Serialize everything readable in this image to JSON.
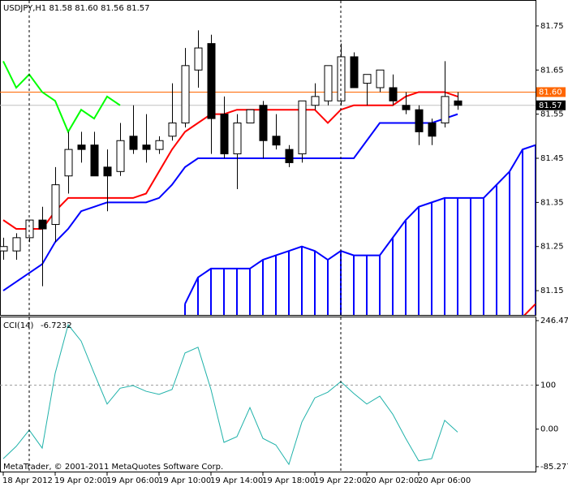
{
  "chart_data": [
    {
      "type": "candlestick",
      "legend_text": "USDJPY,H1  81.58 81.60 81.56 81.57",
      "categories": [
        "18 Apr 2012",
        null,
        null,
        null,
        "19 Apr 02:00",
        null,
        null,
        null,
        "19 Apr 06:00",
        null,
        null,
        null,
        "19 Apr 10:00",
        null,
        null,
        null,
        "19 Apr 14:00",
        null,
        null,
        null,
        "19 Apr 18:00",
        null,
        null,
        null,
        "19 Apr 22:00",
        null,
        null,
        null,
        "20 Apr 02:00",
        null,
        null,
        null,
        "20 Apr 06:00",
        null,
        null,
        null,
        null,
        null,
        null,
        null,
        null,
        null
      ],
      "open": [
        81.24,
        81.24,
        81.27,
        81.31,
        81.3,
        81.41,
        81.48,
        81.48,
        81.43,
        81.42,
        81.5,
        81.48,
        81.47,
        81.5,
        81.53,
        81.65,
        81.71,
        81.55,
        81.46,
        81.53,
        81.57,
        81.5,
        81.47,
        81.46,
        81.57,
        81.58,
        81.58,
        81.68,
        81.62,
        81.61,
        81.61,
        81.57,
        81.56,
        81.53,
        81.53,
        81.58,
        null,
        null,
        null,
        null,
        null,
        null
      ],
      "high": [
        81.27,
        81.28,
        81.31,
        81.34,
        81.43,
        81.51,
        81.51,
        81.51,
        81.47,
        81.53,
        81.57,
        81.55,
        81.5,
        81.62,
        81.7,
        81.74,
        81.73,
        81.59,
        81.55,
        81.56,
        81.58,
        81.55,
        81.48,
        81.58,
        81.62,
        81.66,
        81.71,
        81.69,
        81.64,
        81.65,
        81.64,
        81.6,
        81.57,
        81.54,
        81.67,
        81.6,
        null,
        null,
        null,
        null,
        null,
        null
      ],
      "low": [
        81.22,
        81.22,
        81.26,
        81.16,
        81.26,
        81.37,
        81.44,
        81.41,
        81.33,
        81.41,
        81.46,
        81.44,
        81.46,
        81.49,
        81.52,
        81.61,
        81.46,
        81.45,
        81.38,
        81.53,
        81.45,
        81.47,
        81.43,
        81.44,
        81.56,
        81.57,
        81.57,
        81.61,
        81.57,
        81.6,
        81.57,
        81.55,
        81.48,
        81.48,
        81.52,
        81.56,
        null,
        null,
        null,
        null,
        null,
        null
      ],
      "close": [
        81.25,
        81.27,
        81.31,
        81.29,
        81.39,
        81.47,
        81.47,
        81.41,
        81.41,
        81.49,
        81.47,
        81.47,
        81.49,
        81.53,
        81.66,
        81.7,
        81.54,
        81.46,
        81.53,
        81.56,
        81.49,
        81.48,
        81.44,
        81.58,
        81.59,
        81.66,
        81.68,
        81.61,
        81.64,
        81.65,
        81.58,
        81.56,
        81.51,
        81.5,
        81.59,
        81.57,
        null,
        null,
        null,
        null,
        null,
        null
      ],
      "series": [
        {
          "color": "#ff0000",
          "values": [
            81.31,
            81.29,
            81.29,
            81.29,
            81.33,
            81.36,
            81.36,
            81.36,
            81.36,
            81.36,
            81.36,
            81.37,
            81.42,
            81.47,
            81.51,
            81.53,
            81.55,
            81.55,
            81.56,
            81.56,
            81.56,
            81.56,
            81.56,
            81.56,
            81.56,
            81.53,
            81.56,
            81.57,
            81.57,
            81.57,
            81.57,
            81.59,
            81.6,
            81.6,
            81.6,
            81.59,
            null,
            null,
            null,
            null,
            null,
            null
          ]
        },
        {
          "color": "#0000ff",
          "values": [
            81.15,
            81.17,
            81.19,
            81.21,
            81.26,
            81.29,
            81.33,
            81.34,
            81.35,
            81.35,
            81.35,
            81.35,
            81.36,
            81.39,
            81.43,
            81.45,
            81.45,
            81.45,
            81.45,
            81.45,
            81.45,
            81.45,
            81.45,
            81.45,
            81.45,
            81.45,
            81.45,
            81.45,
            81.49,
            81.53,
            81.53,
            81.53,
            81.53,
            81.53,
            81.54,
            81.55,
            null,
            null,
            null,
            null,
            null,
            null
          ]
        },
        {
          "color": "#00ff00",
          "values": [
            81.67,
            81.61,
            81.64,
            81.6,
            81.58,
            81.51,
            81.56,
            81.54,
            81.59,
            81.57,
            null,
            null,
            null,
            null,
            null,
            null,
            null,
            null,
            null,
            null,
            null,
            null,
            null,
            null,
            null,
            null,
            null,
            null,
            null,
            null,
            null,
            null,
            null,
            null,
            null,
            null,
            null,
            null,
            null,
            null,
            null,
            null
          ]
        },
        {
          "color": "#ff0000",
          "values": [
            null,
            null,
            null,
            null,
            null,
            null,
            null,
            null,
            null,
            null,
            null,
            null,
            null,
            null,
            null,
            null,
            null,
            null,
            null,
            null,
            null,
            null,
            null,
            null,
            null,
            null,
            null,
            null,
            null,
            null,
            null,
            null,
            null,
            null,
            null,
            null,
            null,
            null,
            null,
            null,
            81.09,
            81.12
          ]
        }
      ],
      "cloud": {
        "color": "#0000ff",
        "values": [
          null,
          null,
          null,
          null,
          null,
          null,
          null,
          null,
          null,
          null,
          null,
          null,
          null,
          null,
          81.12,
          81.18,
          81.2,
          81.2,
          81.2,
          81.2,
          81.22,
          81.23,
          81.24,
          81.25,
          81.24,
          81.22,
          81.24,
          81.23,
          81.23,
          81.23,
          81.27,
          81.31,
          81.34,
          81.35,
          81.36,
          81.36,
          81.36,
          81.36,
          81.39,
          81.42,
          81.47,
          81.48
        ]
      },
      "price_lines": [
        {
          "value": 81.6,
          "label": "81.60",
          "color": "#ff6600"
        },
        {
          "value": 81.57,
          "label": "81.57",
          "color": "#c0c0c0"
        }
      ],
      "separators": [
        2,
        26
      ],
      "ylim": [
        81.095,
        81.805
      ],
      "yticks": [
        81.75,
        81.65,
        81.55,
        81.45,
        81.35,
        81.25,
        81.15
      ]
    },
    {
      "type": "line",
      "title": "CCI(14)",
      "color": "#20b2aa",
      "values": [
        -67,
        -39,
        -2,
        -43,
        127,
        237,
        200,
        127,
        57,
        93,
        99,
        86,
        79,
        90,
        173,
        186,
        90,
        -30,
        -17,
        49,
        -21,
        -36,
        -80,
        16,
        71,
        84,
        108,
        81,
        57,
        75,
        34,
        -21,
        -72,
        -67,
        20,
        -6.7232
      ],
      "ylim": [
        -85.2776,
        246.4795
      ],
      "yticks": [
        246.4795,
        100,
        {
          "value": 0,
          "label": "0.00"
        },
        -85.2776
      ],
      "levels": [
        100
      ]
    }
  ],
  "footer": "MetaTrader, © 2001-2011 MetaQuotes Software Corp."
}
